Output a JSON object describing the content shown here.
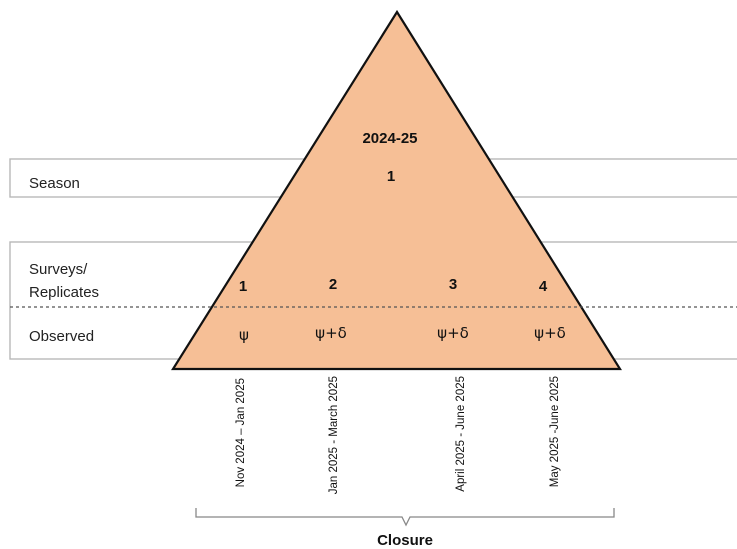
{
  "season_value": "2024-25",
  "season_label": "Season",
  "season_number": "1",
  "surveys_label_line1": "Surveys/",
  "surveys_label_line2": "Replicates",
  "observed_label": "Observed",
  "surveys": [
    {
      "number": "1",
      "observed": "ψ",
      "dates": "Nov 2024 – Jan 2025"
    },
    {
      "number": "2",
      "observed": "ψ+δ",
      "dates": "Jan 2025 - March 2025"
    },
    {
      "number": "3",
      "observed": "ψ+δ",
      "dates": "April 2025 - June 2025"
    },
    {
      "number": "4",
      "observed": "ψ+δ",
      "dates": "May 2025 -June 2025"
    }
  ],
  "closure_label": "Closure",
  "colors": {
    "triangle_fill": "#f6bf96",
    "triangle_stroke": "#111111",
    "box_stroke": "#b8b8b8"
  }
}
